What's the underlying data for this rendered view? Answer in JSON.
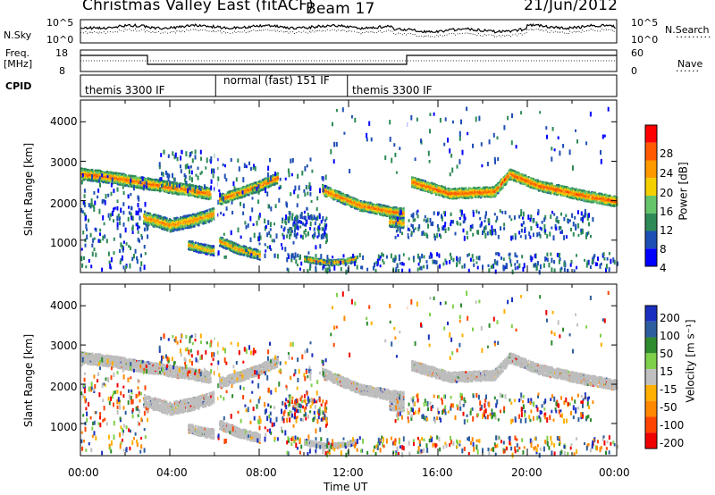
{
  "header": {
    "title": "Christmas Valley East (fitACF)",
    "beam": "Beam 17",
    "date": "21/Jun/2012"
  },
  "summary_panels": {
    "nsky": {
      "left_label": "N.Sky",
      "left_ticks": [
        "10^5",
        "10^0"
      ],
      "right_label": "N.Search",
      "right_ticks": [
        "10^5",
        "10^0"
      ]
    },
    "freq": {
      "left_label_1": "Freq.",
      "left_label_2": "[MHz]",
      "left_ticks": [
        "18",
        "8"
      ],
      "right_label": "Nave",
      "right_ticks": [
        "60",
        "0"
      ]
    },
    "cpid": {
      "label": "CPID",
      "segments": [
        {
          "start_hour": 0.0,
          "end_hour": 6.05,
          "label": "themis 3300 IF"
        },
        {
          "start_hour": 6.05,
          "end_hour": 11.95,
          "label": "normal (fast) 151 IF"
        },
        {
          "start_hour": 11.95,
          "end_hour": 24.0,
          "label": "themis 3300 IF"
        }
      ]
    }
  },
  "chart_data": [
    {
      "type": "heatmap",
      "name": "power",
      "ylabel": "Slant Range [km]",
      "yticks": [
        1000,
        2000,
        3000,
        4000
      ],
      "ylim": [
        180,
        4550
      ],
      "xlim": [
        0,
        24
      ],
      "colorbar": {
        "label": "Power [dB]",
        "ticks": [
          "4",
          "8",
          "12",
          "16",
          "20",
          "24",
          "28"
        ],
        "colors": [
          "#0000ff",
          "#1e4fb4",
          "#2e8b57",
          "#66c56b",
          "#f5d000",
          "#ff9900",
          "#ff5a00",
          "#ff0000"
        ]
      },
      "bands": [
        {
          "hours": [
            0.0,
            1.5,
            3.0,
            5.8
          ],
          "range": [
            2700,
            2600,
            2450,
            2200
          ],
          "width": 180,
          "power": 26
        },
        {
          "hours": [
            2.8,
            4.0,
            5.2,
            6.0
          ],
          "range": [
            1600,
            1400,
            1550,
            1700
          ],
          "width": 200,
          "power": 24
        },
        {
          "hours": [
            4.8,
            5.5,
            6.0
          ],
          "range": [
            900,
            800,
            750
          ],
          "width": 150,
          "power": 22
        },
        {
          "hours": [
            6.2,
            7.0,
            8.0,
            8.8
          ],
          "range": [
            2050,
            2200,
            2400,
            2600
          ],
          "width": 160,
          "power": 26
        },
        {
          "hours": [
            6.2,
            7.0,
            8.0
          ],
          "range": [
            1000,
            800,
            650
          ],
          "width": 150,
          "power": 24
        },
        {
          "hours": [
            10.8,
            12.5,
            13.8,
            14.5
          ],
          "range": [
            2300,
            1900,
            1750,
            1700
          ],
          "width": 160,
          "power": 26
        },
        {
          "hours": [
            13.8,
            14.5
          ],
          "range": [
            1500,
            1450
          ],
          "width": 160,
          "power": 24
        },
        {
          "hours": [
            14.8,
            16.5,
            18.5,
            19.2,
            20.5,
            22.5,
            24.0
          ],
          "range": [
            2500,
            2200,
            2250,
            2700,
            2400,
            2150,
            2000
          ],
          "width": 160,
          "power": 27
        },
        {
          "hours": [
            10.0,
            11.0,
            11.8,
            12.3
          ],
          "range": [
            550,
            450,
            480,
            550
          ],
          "width": 80,
          "power": 25
        }
      ],
      "scatter_regions": [
        {
          "hours": [
            0.0,
            3.0
          ],
          "range": [
            300,
            2700
          ],
          "count": 180
        },
        {
          "hours": [
            3.5,
            6.0
          ],
          "range": [
            2300,
            3300
          ],
          "count": 90
        },
        {
          "hours": [
            6.0,
            11.0
          ],
          "range": [
            600,
            3100
          ],
          "count": 200
        },
        {
          "hours": [
            9.0,
            11.0
          ],
          "range": [
            1100,
            1700
          ],
          "count": 100
        },
        {
          "hours": [
            9.0,
            24.0
          ],
          "range": [
            250,
            700
          ],
          "count": 260
        },
        {
          "hours": [
            14.0,
            23.0
          ],
          "range": [
            1100,
            1800
          ],
          "count": 240
        },
        {
          "hours": [
            11.0,
            24.0
          ],
          "range": [
            2700,
            4400
          ],
          "count": 90
        }
      ]
    },
    {
      "type": "heatmap",
      "name": "velocity",
      "ylabel": "Slant Range [km]",
      "yticks": [
        1000,
        2000,
        3000,
        4000
      ],
      "ylim": [
        180,
        4550
      ],
      "xlim": [
        0,
        24
      ],
      "xticks": [
        "00:00",
        "04:00",
        "08:00",
        "12:00",
        "16:00",
        "20:00",
        "00:00"
      ],
      "xlabel": "Time UT",
      "colorbar": {
        "label": "Velocity [m s⁻¹]",
        "ticks": [
          "200",
          "100",
          "50",
          "15",
          "-15",
          "-50",
          "-100",
          "-200"
        ],
        "colors": [
          "#1a2fbf",
          "#2e5d9e",
          "#2e8b2e",
          "#7fd04a",
          "#c0c0c0",
          "#ffb000",
          "#ff8800",
          "#ff4400",
          "#ee0000"
        ]
      },
      "ground_scatter_color": "#bdbdbd"
    }
  ]
}
